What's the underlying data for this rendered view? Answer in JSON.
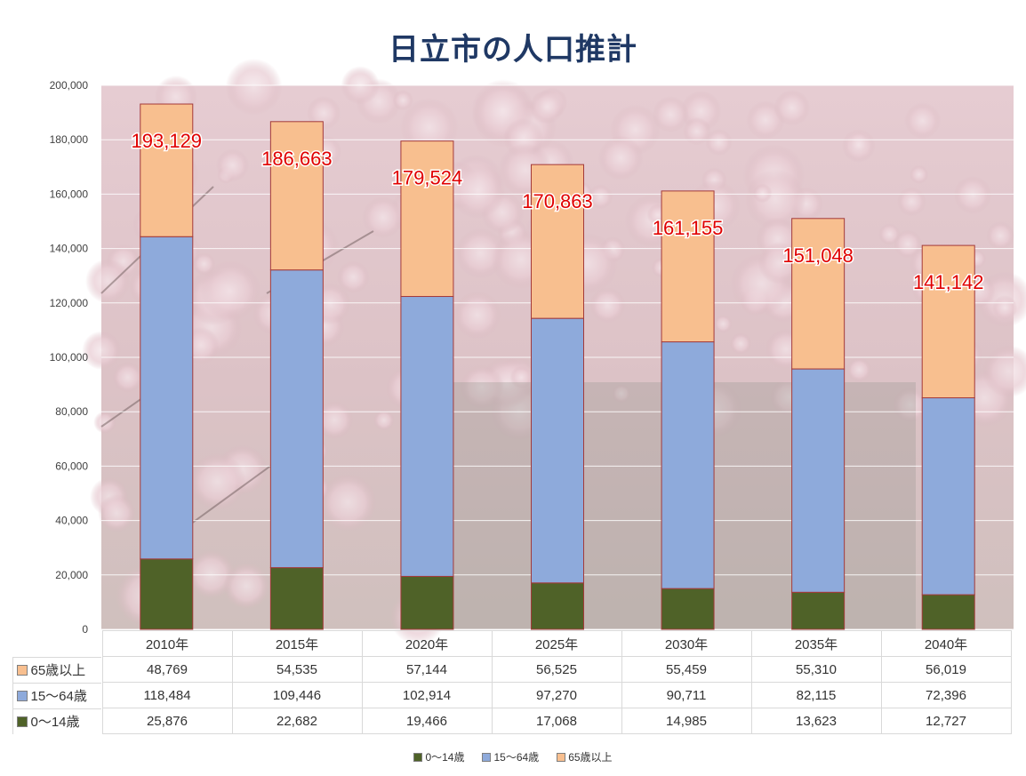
{
  "title": "日立市の人口推計",
  "chart_data": {
    "type": "bar",
    "stacked": true,
    "title": "日立市の人口推計",
    "categories": [
      "2010年",
      "2015年",
      "2020年",
      "2025年",
      "2030年",
      "2035年",
      "2040年"
    ],
    "series": [
      {
        "name": "0〜14歳",
        "color": "#4f6228",
        "values": [
          25876,
          22682,
          19466,
          17068,
          14985,
          13623,
          12727
        ]
      },
      {
        "name": "15〜64歳",
        "color": "#8eaadb",
        "values": [
          118484,
          109446,
          102914,
          97270,
          90711,
          82115,
          72396
        ]
      },
      {
        "name": "65歳以上",
        "color": "#f8bf8f",
        "values": [
          48769,
          54535,
          57144,
          56525,
          55459,
          55310,
          56019
        ]
      }
    ],
    "totals": [
      193129,
      186663,
      179524,
      170863,
      161155,
      151048,
      141142
    ],
    "total_labels": [
      "193,129",
      "186,663",
      "179,524",
      "170,863",
      "161,155",
      "151,048",
      "141,142"
    ],
    "ylim": [
      0,
      200000
    ],
    "yticks": [
      0,
      20000,
      40000,
      60000,
      80000,
      100000,
      120000,
      140000,
      160000,
      180000,
      200000
    ],
    "ytick_labels": [
      "0",
      "20,000",
      "40,000",
      "60,000",
      "80,000",
      "100,000",
      "120,000",
      "140,000",
      "160,000",
      "180,000",
      "200,000"
    ],
    "grid": true,
    "legend_position": "bottom",
    "background": "cherry blossom photograph",
    "bar_border_color": "#a33a3a",
    "total_label_color": "#e00000"
  },
  "table": {
    "rows": [
      {
        "label": "65歳以上",
        "color": "#f8bf8f",
        "cells": [
          "48,769",
          "54,535",
          "57,144",
          "56,525",
          "55,459",
          "55,310",
          "56,019"
        ]
      },
      {
        "label": "15〜64歳",
        "color": "#8eaadb",
        "cells": [
          "118,484",
          "109,446",
          "102,914",
          "97,270",
          "90,711",
          "82,115",
          "72,396"
        ]
      },
      {
        "label": "0〜14歳",
        "color": "#4f6228",
        "cells": [
          "25,876",
          "22,682",
          "19,466",
          "17,068",
          "14,985",
          "13,623",
          "12,727"
        ]
      }
    ]
  },
  "legend": [
    {
      "label": "0〜14歳",
      "color": "#4f6228"
    },
    {
      "label": "15〜64歳",
      "color": "#8eaadb"
    },
    {
      "label": "65歳以上",
      "color": "#f8bf8f"
    }
  ]
}
